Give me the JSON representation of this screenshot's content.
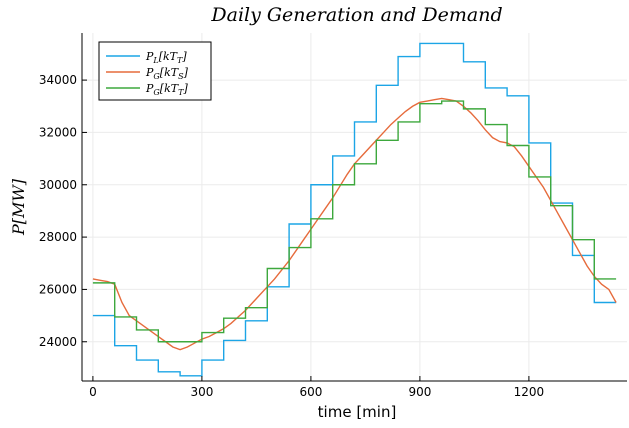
{
  "chart_data": {
    "type": "line",
    "title": "Daily Generation and Demand",
    "xlabel": "time [min]",
    "ylabel": "P[MW]",
    "xlim": [
      -30,
      1470
    ],
    "ylim": [
      22500,
      35800
    ],
    "xticks": [
      0,
      300,
      600,
      900,
      1200
    ],
    "yticks": [
      24000,
      26000,
      28000,
      30000,
      32000,
      34000
    ],
    "xtick_labels": [
      "0",
      "300",
      "600",
      "900",
      "1200"
    ],
    "ytick_labels": [
      "24000",
      "26000",
      "28000",
      "30000",
      "32000",
      "34000"
    ],
    "grid": true,
    "legend_position": "top-left",
    "series": [
      {
        "name": "P_L[kT_T]",
        "color": "#1ca5e6",
        "style": "step",
        "x": [
          0,
          60,
          120,
          180,
          240,
          300,
          360,
          420,
          480,
          540,
          600,
          660,
          720,
          780,
          840,
          900,
          960,
          1020,
          1080,
          1140,
          1200,
          1260,
          1320,
          1380,
          1440
        ],
        "y": [
          25000,
          23850,
          23300,
          22850,
          22700,
          23300,
          24050,
          24800,
          26100,
          28500,
          30000,
          31100,
          32400,
          33800,
          34900,
          35400,
          35400,
          34700,
          33700,
          33400,
          31600,
          29300,
          27300,
          25500,
          25500
        ]
      },
      {
        "name": "P_G[kT_S]",
        "color": "#e66b3c",
        "style": "line",
        "x": [
          0,
          20,
          40,
          60,
          80,
          100,
          120,
          140,
          160,
          180,
          200,
          220,
          240,
          260,
          280,
          300,
          320,
          340,
          360,
          380,
          400,
          420,
          440,
          460,
          480,
          500,
          520,
          540,
          560,
          580,
          600,
          620,
          640,
          660,
          680,
          700,
          720,
          740,
          760,
          780,
          800,
          820,
          840,
          860,
          880,
          900,
          920,
          940,
          960,
          980,
          1000,
          1020,
          1040,
          1060,
          1080,
          1100,
          1120,
          1140,
          1160,
          1180,
          1200,
          1220,
          1240,
          1260,
          1280,
          1300,
          1320,
          1340,
          1360,
          1380,
          1400,
          1420,
          1440
        ],
        "y": [
          26400,
          26350,
          26300,
          26200,
          25500,
          25000,
          24800,
          24600,
          24400,
          24200,
          24000,
          23800,
          23700,
          23800,
          23950,
          24100,
          24200,
          24350,
          24500,
          24700,
          24950,
          25200,
          25500,
          25800,
          26100,
          26400,
          26750,
          27100,
          27500,
          27900,
          28300,
          28700,
          29100,
          29500,
          29950,
          30400,
          30800,
          31100,
          31400,
          31700,
          32000,
          32300,
          32550,
          32800,
          33000,
          33150,
          33200,
          33250,
          33300,
          33250,
          33200,
          33000,
          32750,
          32450,
          32100,
          31800,
          31650,
          31600,
          31450,
          31100,
          30700,
          30300,
          29900,
          29400,
          28900,
          28400,
          27900,
          27400,
          26900,
          26500,
          26200,
          26000,
          25500
        ]
      },
      {
        "name": "P_G[kT_T]",
        "color": "#3da83d",
        "style": "step",
        "x": [
          0,
          60,
          120,
          180,
          240,
          300,
          360,
          420,
          480,
          540,
          600,
          660,
          720,
          780,
          840,
          900,
          960,
          1020,
          1080,
          1140,
          1200,
          1260,
          1320,
          1380,
          1440
        ],
        "y": [
          26250,
          24950,
          24450,
          24000,
          24000,
          24350,
          24900,
          25300,
          26800,
          27600,
          28700,
          30000,
          30800,
          31700,
          32400,
          33100,
          33200,
          32900,
          32300,
          31500,
          30300,
          29200,
          27900,
          26400,
          26400
        ]
      }
    ]
  }
}
